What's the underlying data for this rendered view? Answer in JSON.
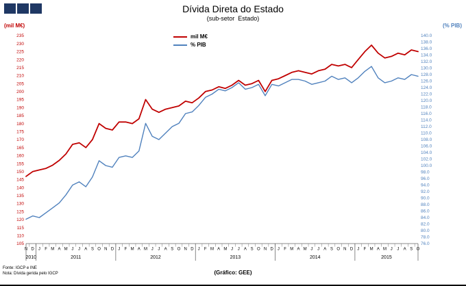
{
  "footer": {
    "source": "Fonte: IGCP e INE",
    "note": "Nota: Dívida gerida pelo IGCP",
    "credit": "(Gráfico: GEE)"
  },
  "chart_data": {
    "type": "line",
    "title": "Dívida Direta do Estado",
    "subtitle": "(sub-setor  Estado)",
    "ylabel_left": "(mil M€)",
    "ylabel_right": "(% PIB)",
    "grid": false,
    "legend_position": "top-center",
    "left_axis": {
      "min": 105,
      "max": 235,
      "step": 5,
      "color": "#C00000"
    },
    "right_axis": {
      "min": 76,
      "max": 140,
      "step": 2,
      "color": "#4F81BD"
    },
    "months": [
      "N",
      "D",
      "J",
      "F",
      "M",
      "A",
      "M",
      "J",
      "J",
      "A",
      "S",
      "O",
      "N",
      "D",
      "J",
      "F",
      "M",
      "A",
      "M",
      "J",
      "J",
      "A",
      "S",
      "O",
      "N",
      "D",
      "J",
      "F",
      "M",
      "A",
      "M",
      "J",
      "J",
      "A",
      "S",
      "O",
      "N",
      "D",
      "J",
      "F",
      "M",
      "A",
      "M",
      "J",
      "J",
      "A",
      "S",
      "O",
      "N",
      "D",
      "J",
      "F",
      "M",
      "A",
      "M",
      "J",
      "J",
      "A",
      "S",
      "O"
    ],
    "years": [
      {
        "label": "2010",
        "from": 0,
        "to": 1
      },
      {
        "label": "2011",
        "from": 2,
        "to": 13
      },
      {
        "label": "2012",
        "from": 14,
        "to": 25
      },
      {
        "label": "2013",
        "from": 26,
        "to": 37
      },
      {
        "label": "2014",
        "from": 38,
        "to": 49
      },
      {
        "label": "2015",
        "from": 50,
        "to": 59
      }
    ],
    "series": [
      {
        "name": "mil M€",
        "axis": "left",
        "color": "#C00000",
        "values": [
          147,
          150,
          151,
          152,
          154,
          157,
          161,
          167,
          168,
          165,
          170,
          180,
          177,
          176,
          181,
          181,
          180,
          183,
          195,
          189,
          187,
          189,
          190,
          191,
          194,
          193,
          196,
          200,
          201,
          203,
          202,
          204,
          207,
          204,
          205,
          207,
          200,
          207,
          208,
          210,
          212,
          213,
          212,
          211,
          213,
          214,
          217,
          216,
          217,
          215,
          220,
          225,
          229,
          224,
          221,
          222,
          224,
          223,
          226,
          225
        ]
      },
      {
        "name": "% PIB",
        "axis": "right",
        "color": "#4F81BD",
        "values": [
          83.5,
          84.5,
          84.0,
          85.5,
          87.0,
          88.5,
          91.0,
          94.0,
          95.0,
          93.5,
          96.5,
          101.5,
          100.0,
          99.5,
          102.5,
          103.0,
          102.5,
          104.5,
          113.0,
          109.0,
          108.0,
          110.0,
          112.0,
          113.0,
          116.0,
          116.5,
          118.5,
          121.0,
          122.0,
          123.5,
          123.0,
          124.0,
          125.5,
          123.5,
          124.0,
          125.0,
          121.5,
          125.0,
          124.5,
          125.5,
          126.5,
          126.5,
          126.0,
          125.0,
          125.5,
          126.0,
          127.5,
          126.5,
          127.0,
          125.5,
          127.0,
          129.0,
          130.5,
          127.0,
          125.5,
          126.0,
          127.0,
          126.5,
          128.0,
          127.5
        ]
      }
    ]
  }
}
